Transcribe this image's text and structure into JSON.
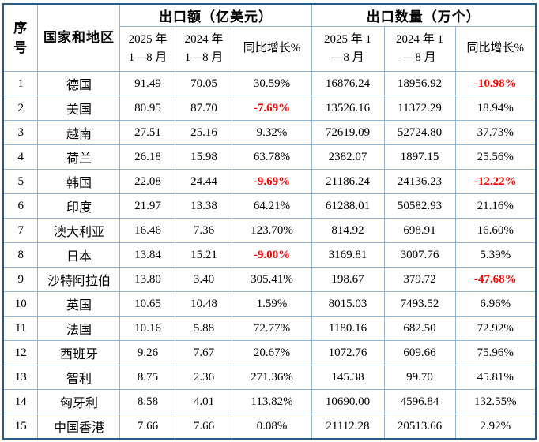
{
  "table": {
    "title_semantic": "export-statistics-by-country",
    "colors": {
      "grid_line": "#95B3D7",
      "outer_border": "#2E5C8A",
      "negative_value": "#FF0000",
      "text": "#000000"
    },
    "header": {
      "serial": "序\n号",
      "country": "国家和地区",
      "group_value": "出口额（亿美元）",
      "group_quantity": "出口数量（万个）",
      "value_2025": "2025 年\n1—8 月",
      "value_2024": "2024 年\n1—8 月",
      "value_growth": "同比增长%",
      "qty_2025": "2025 年 1\n—8 月",
      "qty_2024": "2024 年 1\n—8 月",
      "qty_growth": "同比增长%"
    },
    "rows": [
      {
        "no": "1",
        "country": "德国",
        "v2025": "91.49",
        "v2024": "70.05",
        "vgrowth": "30.59%",
        "q2025": "16876.24",
        "q2024": "18956.92",
        "qgrowth": "-10.98%"
      },
      {
        "no": "2",
        "country": "美国",
        "v2025": "80.95",
        "v2024": "87.70",
        "vgrowth": "-7.69%",
        "q2025": "13526.16",
        "q2024": "11372.29",
        "qgrowth": "18.94%"
      },
      {
        "no": "3",
        "country": "越南",
        "v2025": "27.51",
        "v2024": "25.16",
        "vgrowth": "9.32%",
        "q2025": "72619.09",
        "q2024": "52724.80",
        "qgrowth": "37.73%"
      },
      {
        "no": "4",
        "country": "荷兰",
        "v2025": "26.18",
        "v2024": "15.98",
        "vgrowth": "63.78%",
        "q2025": "2382.07",
        "q2024": "1897.15",
        "qgrowth": "25.56%"
      },
      {
        "no": "5",
        "country": "韩国",
        "v2025": "22.08",
        "v2024": "24.44",
        "vgrowth": "-9.69%",
        "q2025": "21186.24",
        "q2024": "24136.23",
        "qgrowth": "-12.22%"
      },
      {
        "no": "6",
        "country": "印度",
        "v2025": "21.97",
        "v2024": "13.38",
        "vgrowth": "64.21%",
        "q2025": "61288.01",
        "q2024": "50582.93",
        "qgrowth": "21.16%"
      },
      {
        "no": "7",
        "country": "澳大利亚",
        "v2025": "16.46",
        "v2024": "7.36",
        "vgrowth": "123.70%",
        "q2025": "814.92",
        "q2024": "698.91",
        "qgrowth": "16.60%"
      },
      {
        "no": "8",
        "country": "日本",
        "v2025": "13.84",
        "v2024": "15.21",
        "vgrowth": "-9.00%",
        "q2025": "3169.81",
        "q2024": "3007.76",
        "qgrowth": "5.39%"
      },
      {
        "no": "9",
        "country": "沙特阿拉伯",
        "v2025": "13.80",
        "v2024": "3.40",
        "vgrowth": "305.41%",
        "q2025": "198.67",
        "q2024": "379.72",
        "qgrowth": "-47.68%"
      },
      {
        "no": "10",
        "country": "英国",
        "v2025": "10.65",
        "v2024": "10.48",
        "vgrowth": "1.59%",
        "q2025": "8015.03",
        "q2024": "7493.52",
        "qgrowth": "6.96%"
      },
      {
        "no": "11",
        "country": "法国",
        "v2025": "10.16",
        "v2024": "5.88",
        "vgrowth": "72.77%",
        "q2025": "1180.16",
        "q2024": "682.50",
        "qgrowth": "72.92%"
      },
      {
        "no": "12",
        "country": "西班牙",
        "v2025": "9.26",
        "v2024": "7.67",
        "vgrowth": "20.67%",
        "q2025": "1072.76",
        "q2024": "609.66",
        "qgrowth": "75.96%"
      },
      {
        "no": "13",
        "country": "智利",
        "v2025": "8.75",
        "v2024": "2.36",
        "vgrowth": "271.36%",
        "q2025": "145.38",
        "q2024": "99.70",
        "qgrowth": "45.81%"
      },
      {
        "no": "14",
        "country": "匈牙利",
        "v2025": "8.58",
        "v2024": "4.01",
        "vgrowth": "113.82%",
        "q2025": "10690.00",
        "q2024": "4596.84",
        "qgrowth": "132.55%"
      },
      {
        "no": "15",
        "country": "中国香港",
        "v2025": "7.66",
        "v2024": "7.66",
        "vgrowth": "0.08%",
        "q2025": "21112.28",
        "q2024": "20513.66",
        "qgrowth": "2.92%"
      }
    ]
  }
}
